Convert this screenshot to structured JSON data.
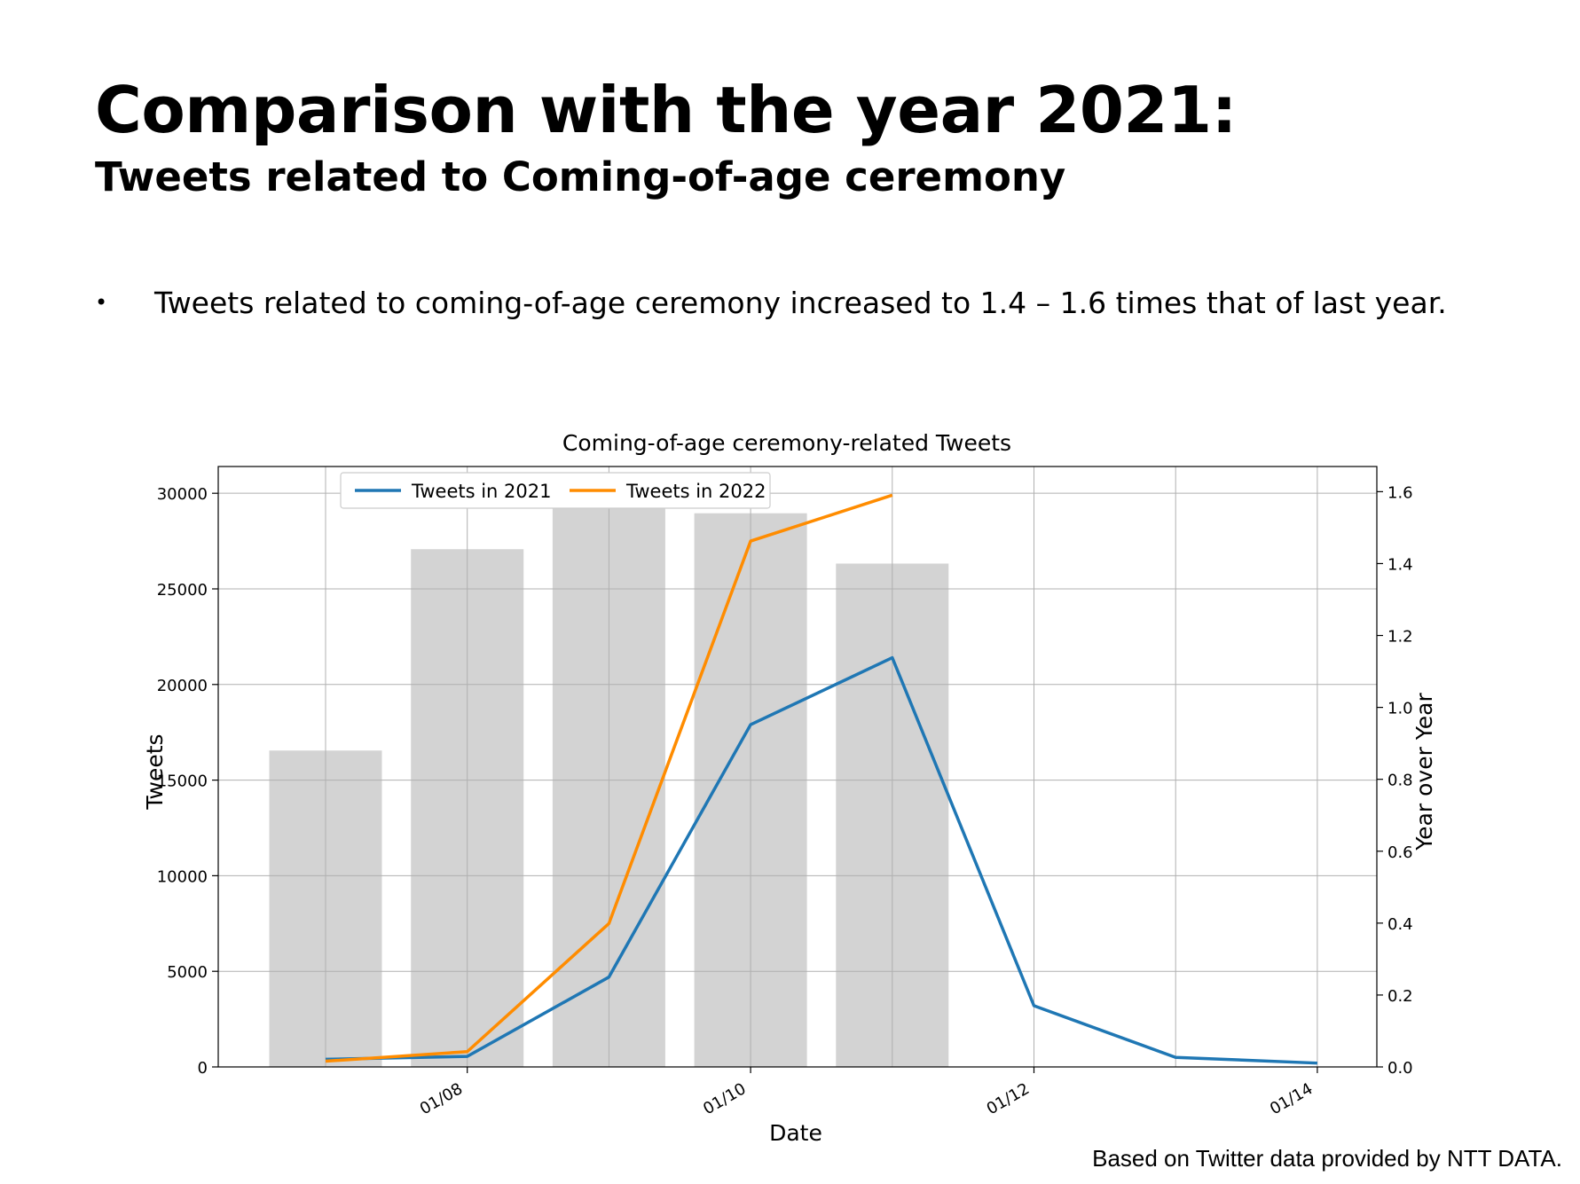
{
  "slide": {
    "title": "Comparison with the year 2021:",
    "subtitle": "Tweets related to Coming-of-age ceremony",
    "bullet_symbol": "•",
    "bullet_text": "Tweets related to coming-of-age ceremony increased to 1.4 – 1.6 times that of last year.",
    "source_note": "Based on Twitter data provided by NTT DATA."
  },
  "chart_data": {
    "type": "line",
    "title": "Coming-of-age ceremony-related Tweets",
    "xlabel": "Date",
    "ylabel": "Tweets",
    "y2label": "Year over Year",
    "x": [
      "01/07",
      "01/08",
      "01/09",
      "01/10",
      "01/11",
      "01/12",
      "01/13",
      "01/14"
    ],
    "x_tick_labels": [
      "01/08",
      "01/10",
      "01/12",
      "01/14"
    ],
    "ylim": [
      0,
      31400
    ],
    "y_ticks": [
      0,
      5000,
      10000,
      15000,
      20000,
      25000,
      30000
    ],
    "y2lim": [
      0,
      1.67
    ],
    "y2_ticks": [
      0.0,
      0.2,
      0.4,
      0.6,
      0.8,
      1.0,
      1.2,
      1.4,
      1.6
    ],
    "grid": true,
    "legend_position": "top-left",
    "series": [
      {
        "name": "Tweets in 2021",
        "type": "line",
        "axis": "left",
        "color": "#1f77b4",
        "values": [
          400,
          550,
          4700,
          17900,
          21400,
          3200,
          500,
          200
        ]
      },
      {
        "name": "Tweets in 2022",
        "type": "line",
        "axis": "left",
        "color": "#ff8c00",
        "values": [
          300,
          800,
          7500,
          27500,
          29900,
          null,
          null,
          null
        ]
      },
      {
        "type": "bar",
        "axis": "right",
        "color": "#d3d3d3",
        "values": [
          0.88,
          1.44,
          1.56,
          1.54,
          1.4,
          null,
          null,
          null
        ]
      }
    ]
  }
}
